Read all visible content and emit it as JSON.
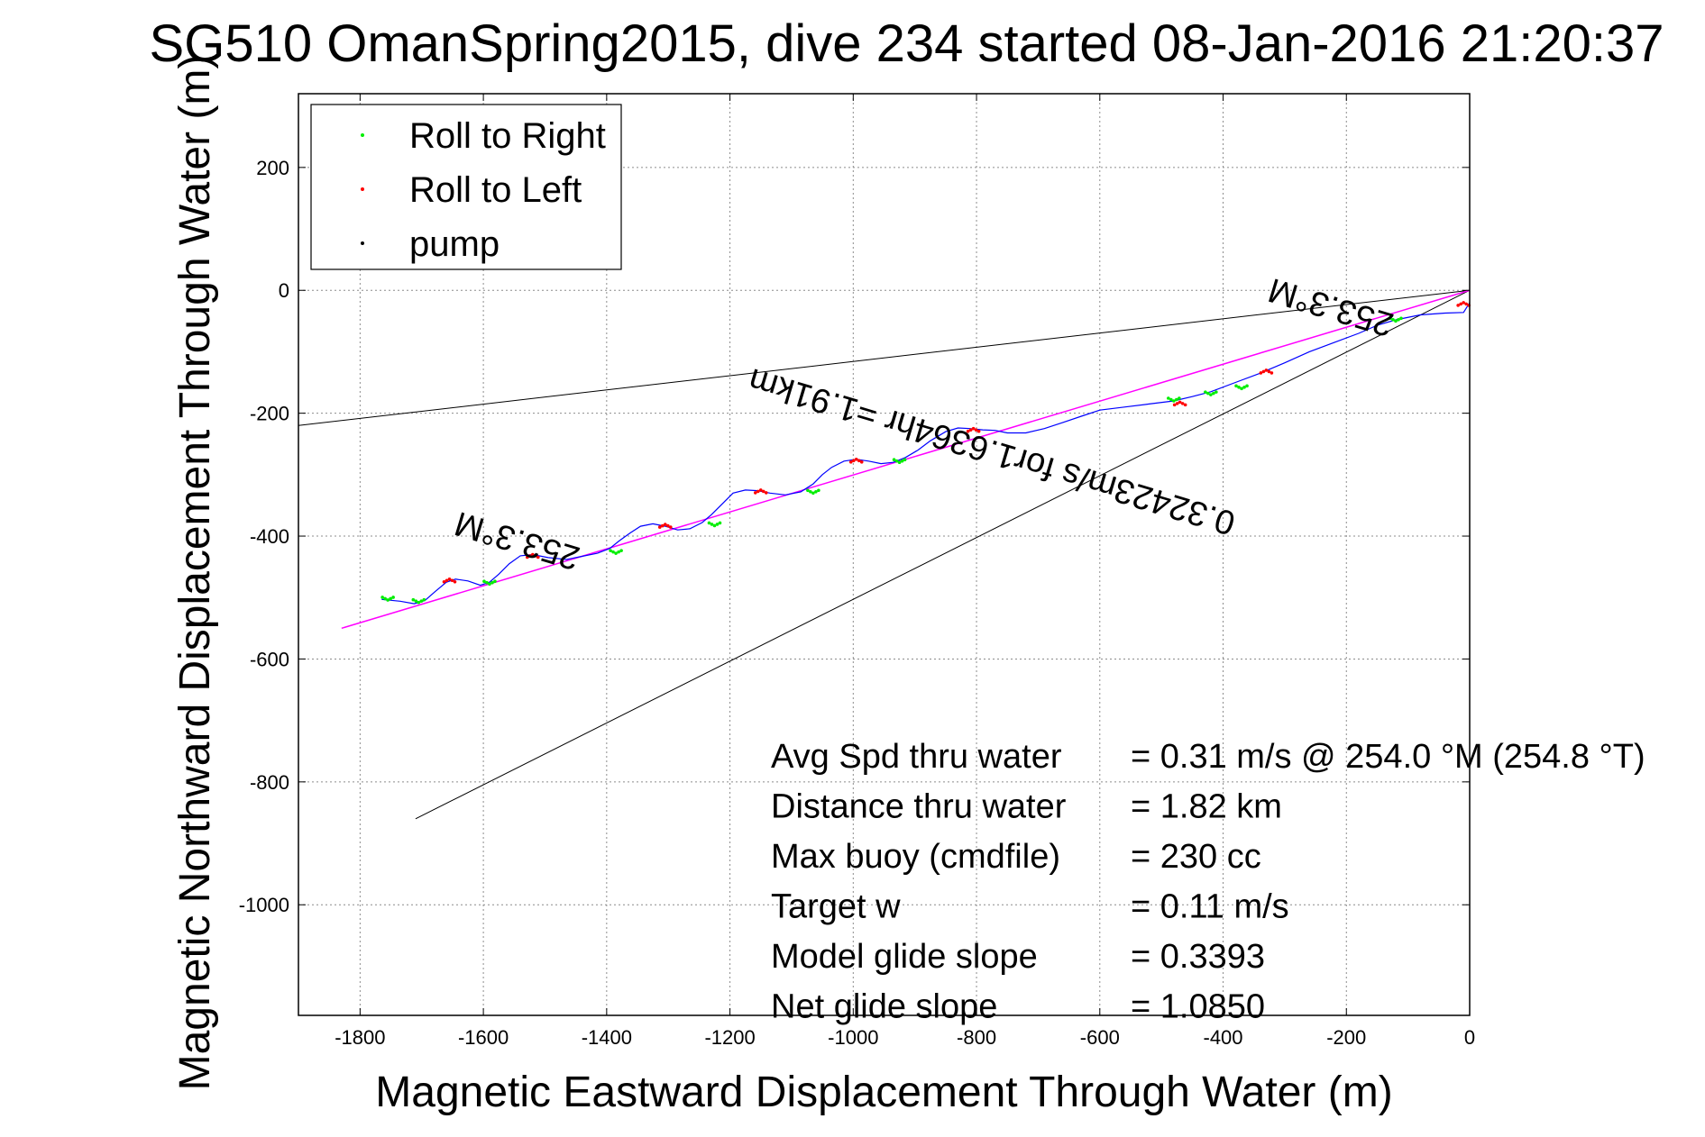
{
  "chart_data": {
    "type": "line",
    "title": "SG510 OmanSpring2015, dive 234 started 08-Jan-2016 21:20:37",
    "xlabel": "Magnetic Eastward Displacement Through Water (m)",
    "ylabel": "Magnetic Northward Displacement Through Water (m)",
    "xlim": [
      -1900,
      0
    ],
    "ylim": [
      -1180,
      320
    ],
    "xticks": [
      -1800,
      -1600,
      -1400,
      -1200,
      -1000,
      -800,
      -600,
      -400,
      -200,
      0
    ],
    "yticks": [
      200,
      0,
      -200,
      -400,
      -600,
      -800,
      -1000
    ],
    "grid": true,
    "legend_position": "top-left",
    "legend": [
      {
        "label": "Roll to Right",
        "color": "#00ee00"
      },
      {
        "label": "Roll to Left",
        "color": "#ff0000"
      },
      {
        "label": "pump",
        "color": "#000000"
      }
    ],
    "track_color": "#0000ff",
    "fit_line_color": "#ff00ff",
    "track": {
      "x": [
        -1765,
        -1735,
        -1712,
        -1695,
        -1678,
        -1660,
        -1645,
        -1625,
        -1605,
        -1590,
        -1575,
        -1558,
        -1540,
        -1520,
        -1495,
        -1465,
        -1440,
        -1415,
        -1395,
        -1380,
        -1362,
        -1345,
        -1325,
        -1305,
        -1285,
        -1265,
        -1245,
        -1230,
        -1212,
        -1195,
        -1175,
        -1155,
        -1135,
        -1110,
        -1085,
        -1065,
        -1050,
        -1035,
        -1015,
        -995,
        -975,
        -955,
        -935,
        -915,
        -895,
        -875,
        -850,
        -830,
        -810,
        -790,
        -770,
        -750,
        -720,
        -690,
        -660,
        -630,
        -600,
        -560,
        -520,
        -480,
        -450,
        -420,
        -380,
        -340,
        -300,
        -260,
        -220,
        -180,
        -150,
        -120,
        -80,
        -40,
        -10,
        0
      ],
      "y": [
        -503,
        -506,
        -510,
        -505,
        -490,
        -475,
        -470,
        -473,
        -480,
        -475,
        -462,
        -445,
        -432,
        -430,
        -435,
        -438,
        -433,
        -428,
        -420,
        -408,
        -395,
        -384,
        -380,
        -384,
        -390,
        -388,
        -378,
        -365,
        -347,
        -330,
        -325,
        -326,
        -330,
        -333,
        -328,
        -315,
        -300,
        -288,
        -278,
        -275,
        -278,
        -282,
        -280,
        -272,
        -260,
        -245,
        -230,
        -224,
        -225,
        -227,
        -228,
        -232,
        -232,
        -225,
        -215,
        -205,
        -195,
        -190,
        -185,
        -180,
        -173,
        -165,
        -150,
        -135,
        -118,
        -100,
        -85,
        -70,
        -57,
        -48,
        -40,
        -37,
        -36,
        -20
      ]
    },
    "fit_line": {
      "x": [
        -1830,
        0
      ],
      "y": [
        -550,
        0
      ]
    },
    "envelope_lines": [
      {
        "x": [
          -1900,
          0
        ],
        "y": [
          -220,
          0
        ]
      },
      {
        "x": [
          -1710,
          0
        ],
        "y": [
          -860,
          0
        ]
      }
    ],
    "roll_right_points": {
      "x": [
        -1755,
        -1705,
        -1590,
        -1385,
        -1225,
        -1065,
        -925,
        -480,
        -420,
        -370,
        -120
      ],
      "y": [
        -504,
        -508,
        -478,
        -428,
        -383,
        -330,
        -280,
        -180,
        -170,
        -160,
        -50
      ]
    },
    "roll_left_points": {
      "x": [
        -1655,
        -1520,
        -1305,
        -1150,
        -995,
        -805,
        -470,
        -330,
        -10
      ],
      "y": [
        -470,
        -430,
        -381,
        -325,
        -275,
        -225,
        -182,
        -130,
        -20
      ]
    },
    "annotations": [
      {
        "text": "253.3°M",
        "x": -1540,
        "y": -390,
        "rotation_deg": 196.7
      },
      {
        "text": "0.32423m/s for1.6364hr =1.91km",
        "x": -770,
        "y": -245,
        "rotation_deg": 196.7
      },
      {
        "text": "253.3°M",
        "x": -220,
        "y": -10,
        "rotation_deg": 196.7
      }
    ],
    "stats": [
      {
        "label": "Avg Spd thru water",
        "value": "=  0.31 m/s @ 254.0 °M (254.8 °T)"
      },
      {
        "label": "Distance thru water",
        "value": "=  1.82 km"
      },
      {
        "label": "Max buoy (cmdfile)",
        "value": "= 230 cc"
      },
      {
        "label": "Target w",
        "value": "= 0.11 m/s"
      },
      {
        "label": "Model glide slope",
        "value": "= 0.3393"
      },
      {
        "label": "Net glide slope",
        "value": "= 1.0850"
      }
    ]
  }
}
